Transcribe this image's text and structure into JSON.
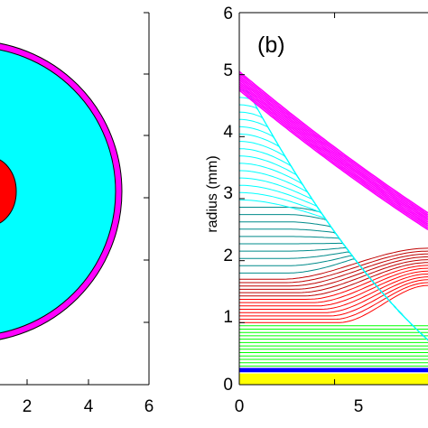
{
  "chart_data": [
    {
      "type": "contour",
      "panel": "a",
      "shape": "concentric circular regions (cross-section)",
      "xticks": [
        "2",
        "4",
        "6"
      ],
      "xlim": [
        0,
        6
      ],
      "ylim": [
        0,
        6
      ],
      "regions": [
        {
          "color": "#ff00ff",
          "outer_radius": 5.0
        },
        {
          "color": "#00ffff",
          "outer_radius": 4.85
        },
        {
          "color": "#ff0000",
          "outer_radius": 1.1
        }
      ]
    },
    {
      "type": "line",
      "panel": "b",
      "panel_label": "(b)",
      "ylabel": "radius (mm)",
      "yticks": [
        "0",
        "1",
        "2",
        "3",
        "4",
        "5",
        "6"
      ],
      "xticks": [
        "0",
        "5"
      ],
      "ylim": [
        0,
        6
      ],
      "xlim": [
        0,
        9.9
      ],
      "series": [
        {
          "color": "#ffff00",
          "kind": "band",
          "y_range": [
            0,
            0.18
          ]
        },
        {
          "color": "#0000ff",
          "kind": "band",
          "y_range": [
            0.2,
            0.27
          ]
        },
        {
          "color": "#00ff00",
          "kind": "flat-lines",
          "y_range": [
            0.3,
            0.95
          ]
        },
        {
          "color": "#ff0000",
          "kind": "rising-lines",
          "y_start": [
            1.0,
            1.7
          ],
          "y_end_at_xmax": [
            1.6,
            2.2
          ]
        },
        {
          "color": "#00ffff",
          "kind": "converging-lines",
          "y_start": [
            1.8,
            4.75
          ],
          "y_end_at_xmax": [
            2.3,
            2.3
          ]
        },
        {
          "color": "#ff00ff",
          "kind": "outer-boundary",
          "y_start": [
            4.75,
            5.05
          ],
          "y_end_at_xmax": [
            2.5,
            2.8
          ]
        }
      ]
    }
  ],
  "colors": {
    "magenta": "#ff00ff",
    "cyan": "#00ffff",
    "red": "#ff0000",
    "green": "#00ff00",
    "blue": "#0000ff",
    "yellow": "#ffff00",
    "darkred": "#c00000",
    "darkcyan": "#008b8b"
  }
}
